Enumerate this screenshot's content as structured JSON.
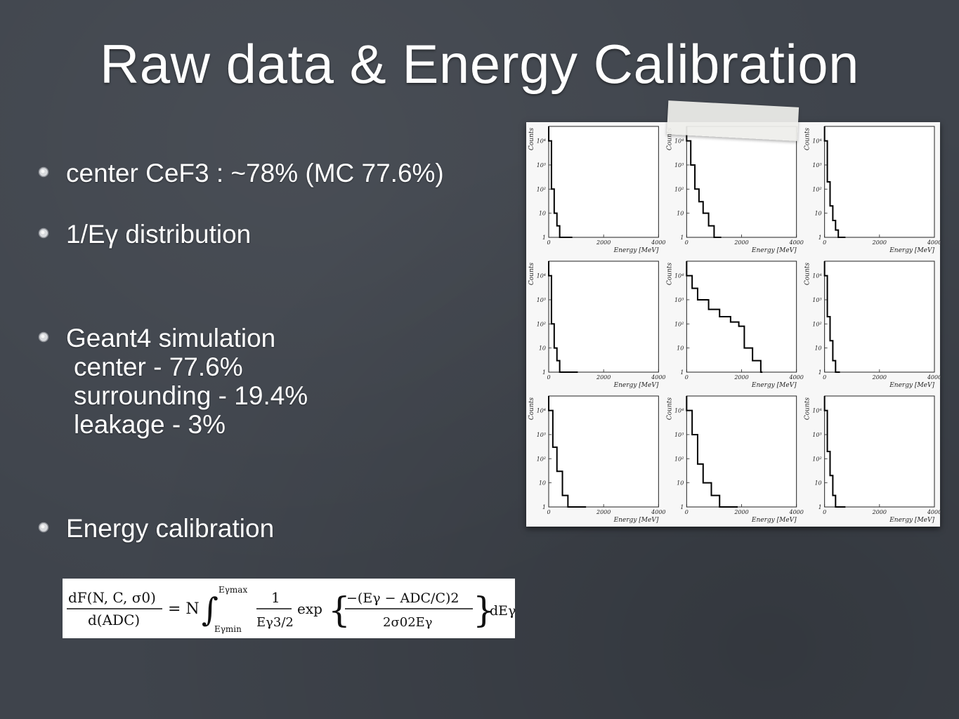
{
  "slide": {
    "title": "Raw data & Energy Calibration"
  },
  "bullets": [
    {
      "text": "center CeF3 : ~78% (MC 77.6%)"
    },
    {
      "text": "1/Eγ distribution"
    },
    {
      "text": "Geant4 simulation",
      "sub": [
        "center - 77.6%",
        "surrounding - 19.4%",
        "leakage - 3%"
      ]
    },
    {
      "text": "Energy calibration"
    }
  ],
  "formula": {
    "lhs_num": "dF(N, C, σ0)",
    "lhs_den": "d(ADC)",
    "eq": "= N",
    "upper": "Eγmax",
    "lower": "Eγmin",
    "frac_num": "1",
    "frac_den": "Eγ3/2",
    "exp": "exp",
    "exp_num": "−(Eγ − ADC/C)2",
    "exp_den": "2σ02Eγ",
    "tail": "dEγ"
  },
  "chart_data": {
    "type": "line",
    "layout": "3x3 grid",
    "xlabel": "Energy [MeV]",
    "ylabel": "Counts",
    "xticks": [
      "0",
      "2000",
      "4000"
    ],
    "yticks": [
      "1",
      "10",
      "10²",
      "10³",
      "10⁴"
    ],
    "ylog": true,
    "panels": [
      {
        "name": "top-left",
        "x": [
          0,
          100,
          200,
          300,
          400,
          600,
          800
        ],
        "y": [
          10000,
          100,
          10,
          3,
          1,
          1,
          1
        ]
      },
      {
        "name": "top-center",
        "x": [
          0,
          150,
          300,
          450,
          600,
          800,
          1000,
          1200
        ],
        "y": [
          10000,
          1000,
          100,
          30,
          10,
          3,
          1,
          1
        ]
      },
      {
        "name": "top-right",
        "x": [
          0,
          100,
          200,
          300,
          400,
          500,
          700
        ],
        "y": [
          10000,
          200,
          20,
          5,
          2,
          1,
          1
        ]
      },
      {
        "name": "middle-left",
        "x": [
          0,
          100,
          200,
          300,
          400,
          1000
        ],
        "y": [
          10000,
          100,
          10,
          3,
          1,
          1
        ]
      },
      {
        "name": "middle-center",
        "x": [
          0,
          200,
          400,
          800,
          1200,
          1600,
          1900,
          2100,
          2400,
          2700
        ],
        "y": [
          10000,
          3000,
          1000,
          400,
          200,
          120,
          80,
          10,
          3,
          1
        ]
      },
      {
        "name": "middle-right",
        "x": [
          0,
          100,
          200,
          300,
          400,
          500
        ],
        "y": [
          10000,
          200,
          20,
          3,
          1,
          1
        ]
      },
      {
        "name": "bottom-left",
        "x": [
          0,
          150,
          300,
          500,
          700,
          900,
          1300
        ],
        "y": [
          10000,
          300,
          30,
          3,
          1,
          1,
          1
        ]
      },
      {
        "name": "bottom-center",
        "x": [
          0,
          200,
          400,
          600,
          900,
          1200,
          1500,
          1800
        ],
        "y": [
          10000,
          1000,
          60,
          10,
          3,
          1,
          1,
          1
        ]
      },
      {
        "name": "bottom-right",
        "x": [
          0,
          100,
          200,
          300,
          400,
          700
        ],
        "y": [
          10000,
          200,
          20,
          3,
          1,
          1
        ]
      }
    ]
  }
}
